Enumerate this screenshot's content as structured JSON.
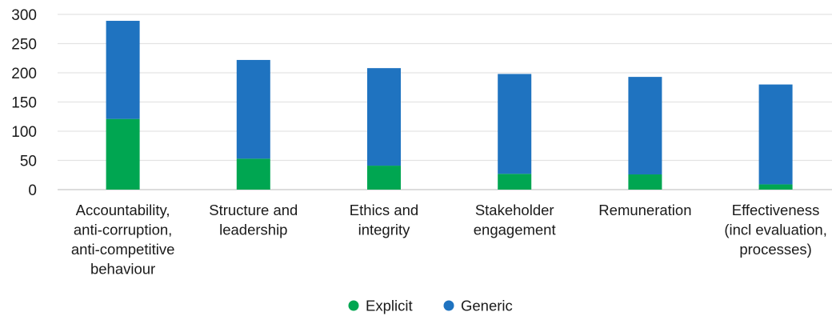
{
  "chart_data": {
    "type": "bar",
    "stacked": true,
    "categories": [
      "Accountability, anti-corruption, anti-competitive behaviour",
      "Structure and leadership",
      "Ethics and integrity",
      "Stakeholder engagement",
      "Remuneration",
      "Effectiveness (incl evaluation, processes)"
    ],
    "category_lines": [
      [
        "Accountability,",
        "anti-corruption,",
        "anti-competitive",
        "behaviour"
      ],
      [
        "Structure and",
        "leadership"
      ],
      [
        "Ethics and",
        "integrity"
      ],
      [
        "Stakeholder",
        "engagement"
      ],
      [
        "Remuneration"
      ],
      [
        "Effectiveness",
        "(incl evaluation,",
        "processes)"
      ]
    ],
    "series": [
      {
        "name": "Explicit",
        "color": "#00a651",
        "values": [
          121,
          53,
          41,
          27,
          26,
          9
        ]
      },
      {
        "name": "Generic",
        "color": "#1f73c0",
        "values": [
          168,
          169,
          167,
          171,
          167,
          171
        ]
      }
    ],
    "ylim": [
      0,
      300
    ],
    "yticks": [
      0,
      50,
      100,
      150,
      200,
      250,
      300
    ],
    "grid": true,
    "legend": "bottom-center",
    "title": "",
    "xlabel": "",
    "ylabel": ""
  }
}
